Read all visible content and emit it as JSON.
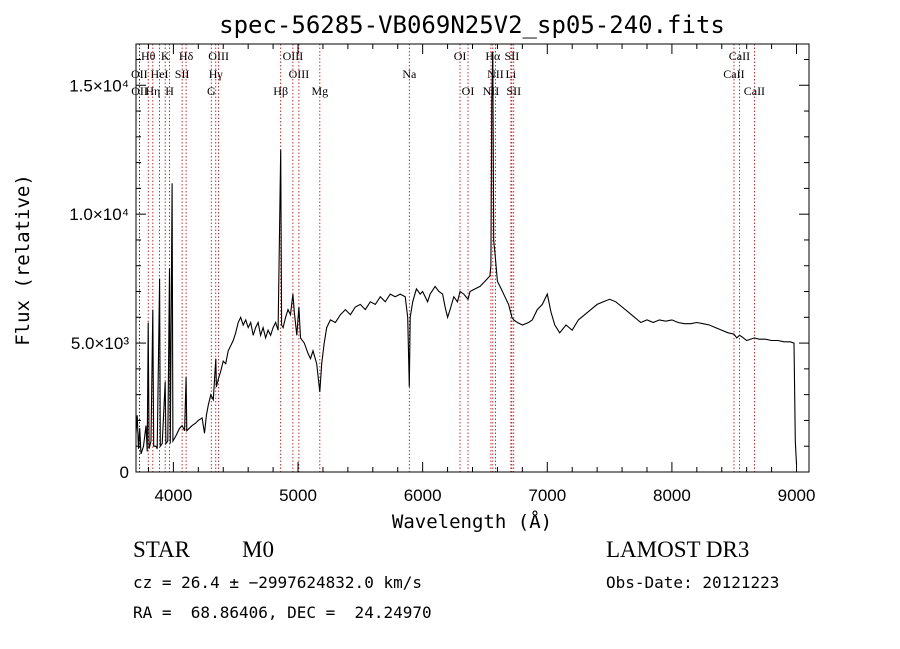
{
  "chart_data": {
    "type": "line",
    "title": "spec-56285-VB069N25V2_sp05-240.fits",
    "xlabel": "Wavelength (Å)",
    "ylabel": "Flux (relative)",
    "xlim": [
      3700,
      9100
    ],
    "ylim": [
      0,
      16600
    ],
    "x_ticks": [
      {
        "value": 4000,
        "label": "4000"
      },
      {
        "value": 5000,
        "label": "5000"
      },
      {
        "value": 6000,
        "label": "6000"
      },
      {
        "value": 7000,
        "label": "7000"
      },
      {
        "value": 8000,
        "label": "8000"
      },
      {
        "value": 9000,
        "label": "9000"
      }
    ],
    "y_ticks": [
      {
        "value": 0,
        "label": "0"
      },
      {
        "value": 5000,
        "label": "5.0×10³"
      },
      {
        "value": 10000,
        "label": "1.0×10⁴"
      },
      {
        "value": 15000,
        "label": "1.5×10⁴"
      }
    ],
    "spectral_lines": [
      {
        "label": "Hθ",
        "wavelength": 3798,
        "row": 0
      },
      {
        "label": "K",
        "wavelength": 3934,
        "row": 0
      },
      {
        "label": "Hδ",
        "wavelength": 4102,
        "row": 0
      },
      {
        "label": "OIII",
        "wavelength": 4363,
        "row": 0
      },
      {
        "label": "OIII",
        "wavelength": 4959,
        "row": 0
      },
      {
        "label": "OI",
        "wavelength": 6300,
        "row": 0
      },
      {
        "label": "Hα",
        "wavelength": 6563,
        "row": 0
      },
      {
        "label": "SII",
        "wavelength": 6716,
        "row": 0
      },
      {
        "label": "CaII",
        "wavelength": 8542,
        "row": 0
      },
      {
        "label": "OII",
        "wavelength": 3727,
        "row": 1
      },
      {
        "label": "HeI",
        "wavelength": 3889,
        "row": 1
      },
      {
        "label": "SII",
        "wavelength": 4070,
        "row": 1
      },
      {
        "label": "Hγ",
        "wavelength": 4340,
        "row": 1
      },
      {
        "label": "OIII",
        "wavelength": 5007,
        "row": 1
      },
      {
        "label": "Na",
        "wavelength": 5893,
        "row": 1
      },
      {
        "label": "NII",
        "wavelength": 6584,
        "row": 1
      },
      {
        "label": "Li",
        "wavelength": 6708,
        "row": 1
      },
      {
        "label": "CaII",
        "wavelength": 8498,
        "row": 1
      },
      {
        "label": "OII",
        "wavelength": 3729,
        "row": 2
      },
      {
        "label": "Hη",
        "wavelength": 3835,
        "row": 2
      },
      {
        "label": "H",
        "wavelength": 3969,
        "row": 2
      },
      {
        "label": "G",
        "wavelength": 4304,
        "row": 2
      },
      {
        "label": "Hβ",
        "wavelength": 4861,
        "row": 2
      },
      {
        "label": "Mg",
        "wavelength": 5175,
        "row": 2
      },
      {
        "label": "OI",
        "wavelength": 6364,
        "row": 2
      },
      {
        "label": "NII",
        "wavelength": 6548,
        "row": 2
      },
      {
        "label": "SII",
        "wavelength": 6731,
        "row": 2
      },
      {
        "label": "CaII",
        "wavelength": 8662,
        "row": 2
      }
    ],
    "spectrum": [
      [
        3700,
        1500
      ],
      [
        3710,
        2200
      ],
      [
        3720,
        900
      ],
      [
        3730,
        1700
      ],
      [
        3740,
        700
      ],
      [
        3760,
        1000
      ],
      [
        3780,
        1800
      ],
      [
        3790,
        800
      ],
      [
        3798,
        5800
      ],
      [
        3805,
        900
      ],
      [
        3820,
        1200
      ],
      [
        3835,
        6300
      ],
      [
        3842,
        1000
      ],
      [
        3860,
        1000
      ],
      [
        3870,
        900
      ],
      [
        3889,
        7500
      ],
      [
        3895,
        1000
      ],
      [
        3910,
        1100
      ],
      [
        3934,
        3500
      ],
      [
        3940,
        1100
      ],
      [
        3955,
        1200
      ],
      [
        3969,
        7900
      ],
      [
        3975,
        1100
      ],
      [
        3990,
        11200
      ],
      [
        3996,
        1200
      ],
      [
        4020,
        1400
      ],
      [
        4050,
        1700
      ],
      [
        4070,
        1800
      ],
      [
        4090,
        1600
      ],
      [
        4102,
        3700
      ],
      [
        4108,
        1600
      ],
      [
        4150,
        1800
      ],
      [
        4180,
        1900
      ],
      [
        4200,
        2000
      ],
      [
        4230,
        2100
      ],
      [
        4250,
        1500
      ],
      [
        4265,
        2200
      ],
      [
        4280,
        2600
      ],
      [
        4300,
        3000
      ],
      [
        4320,
        2800
      ],
      [
        4340,
        4400
      ],
      [
        4345,
        3300
      ],
      [
        4360,
        3600
      ],
      [
        4380,
        3900
      ],
      [
        4400,
        4300
      ],
      [
        4420,
        4200
      ],
      [
        4440,
        4700
      ],
      [
        4460,
        4900
      ],
      [
        4480,
        5100
      ],
      [
        4500,
        5400
      ],
      [
        4520,
        5800
      ],
      [
        4540,
        6000
      ],
      [
        4560,
        5700
      ],
      [
        4580,
        5900
      ],
      [
        4600,
        5600
      ],
      [
        4620,
        5800
      ],
      [
        4640,
        5300
      ],
      [
        4660,
        5600
      ],
      [
        4680,
        5800
      ],
      [
        4700,
        5300
      ],
      [
        4720,
        5600
      ],
      [
        4740,
        5200
      ],
      [
        4760,
        5500
      ],
      [
        4780,
        5300
      ],
      [
        4800,
        5600
      ],
      [
        4820,
        5800
      ],
      [
        4840,
        5500
      ],
      [
        4861,
        12500
      ],
      [
        4868,
        5700
      ],
      [
        4880,
        5600
      ],
      [
        4900,
        6000
      ],
      [
        4920,
        6300
      ],
      [
        4940,
        6100
      ],
      [
        4959,
        6900
      ],
      [
        4970,
        6200
      ],
      [
        4990,
        5300
      ],
      [
        5007,
        6400
      ],
      [
        5020,
        5200
      ],
      [
        5050,
        5000
      ],
      [
        5080,
        4600
      ],
      [
        5100,
        4400
      ],
      [
        5120,
        4700
      ],
      [
        5150,
        4200
      ],
      [
        5175,
        3100
      ],
      [
        5190,
        4200
      ],
      [
        5210,
        5000
      ],
      [
        5230,
        5600
      ],
      [
        5260,
        5900
      ],
      [
        5300,
        5800
      ],
      [
        5340,
        6100
      ],
      [
        5380,
        6300
      ],
      [
        5420,
        6100
      ],
      [
        5460,
        6400
      ],
      [
        5500,
        6500
      ],
      [
        5540,
        6300
      ],
      [
        5580,
        6600
      ],
      [
        5620,
        6500
      ],
      [
        5660,
        6800
      ],
      [
        5700,
        6600
      ],
      [
        5740,
        6900
      ],
      [
        5780,
        6800
      ],
      [
        5820,
        6900
      ],
      [
        5860,
        6800
      ],
      [
        5880,
        6000
      ],
      [
        5893,
        3300
      ],
      [
        5900,
        6000
      ],
      [
        5920,
        6600
      ],
      [
        5950,
        7100
      ],
      [
        5980,
        6900
      ],
      [
        6000,
        7000
      ],
      [
        6040,
        6600
      ],
      [
        6060,
        6900
      ],
      [
        6100,
        7200
      ],
      [
        6130,
        7000
      ],
      [
        6160,
        6900
      ],
      [
        6180,
        6400
      ],
      [
        6200,
        6000
      ],
      [
        6220,
        6300
      ],
      [
        6250,
        6800
      ],
      [
        6280,
        6600
      ],
      [
        6300,
        7000
      ],
      [
        6330,
        6900
      ],
      [
        6364,
        6700
      ],
      [
        6380,
        7000
      ],
      [
        6420,
        7100
      ],
      [
        6460,
        7200
      ],
      [
        6500,
        7400
      ],
      [
        6540,
        7600
      ],
      [
        6548,
        8000
      ],
      [
        6555,
        14500
      ],
      [
        6563,
        16300
      ],
      [
        6570,
        9000
      ],
      [
        6584,
        8300
      ],
      [
        6600,
        7400
      ],
      [
        6630,
        7100
      ],
      [
        6660,
        6800
      ],
      [
        6690,
        6500
      ],
      [
        6716,
        6000
      ],
      [
        6731,
        5900
      ],
      [
        6760,
        5800
      ],
      [
        6800,
        5700
      ],
      [
        6850,
        5800
      ],
      [
        6880,
        5900
      ],
      [
        6920,
        6300
      ],
      [
        6960,
        6500
      ],
      [
        7000,
        6900
      ],
      [
        7030,
        6200
      ],
      [
        7060,
        5700
      ],
      [
        7100,
        5400
      ],
      [
        7150,
        5700
      ],
      [
        7200,
        5500
      ],
      [
        7250,
        5900
      ],
      [
        7300,
        6100
      ],
      [
        7350,
        6300
      ],
      [
        7400,
        6500
      ],
      [
        7450,
        6600
      ],
      [
        7500,
        6700
      ],
      [
        7550,
        6600
      ],
      [
        7600,
        6400
      ],
      [
        7650,
        6200
      ],
      [
        7700,
        6000
      ],
      [
        7750,
        5800
      ],
      [
        7800,
        5900
      ],
      [
        7850,
        5800
      ],
      [
        7900,
        5900
      ],
      [
        7950,
        5850
      ],
      [
        8000,
        5900
      ],
      [
        8050,
        5800
      ],
      [
        8100,
        5750
      ],
      [
        8150,
        5750
      ],
      [
        8200,
        5800
      ],
      [
        8250,
        5750
      ],
      [
        8300,
        5700
      ],
      [
        8350,
        5600
      ],
      [
        8400,
        5500
      ],
      [
        8450,
        5400
      ],
      [
        8498,
        5350
      ],
      [
        8520,
        5200
      ],
      [
        8542,
        5300
      ],
      [
        8560,
        5250
      ],
      [
        8600,
        5100
      ],
      [
        8662,
        5200
      ],
      [
        8700,
        5150
      ],
      [
        8750,
        5150
      ],
      [
        8800,
        5100
      ],
      [
        8850,
        5100
      ],
      [
        8900,
        5050
      ],
      [
        8950,
        5050
      ],
      [
        8980,
        5000
      ],
      [
        8990,
        1200
      ],
      [
        9000,
        300
      ]
    ]
  },
  "info": {
    "object_class": "STAR",
    "subclass": "M0",
    "survey": "LAMOST DR3",
    "redshift_line": "cz = 26.4 ± −2997624832.0 km/s",
    "obs_date_line": "Obs-Date: 20121223",
    "coords_line": "RA =  68.86406, DEC =  24.24970"
  }
}
